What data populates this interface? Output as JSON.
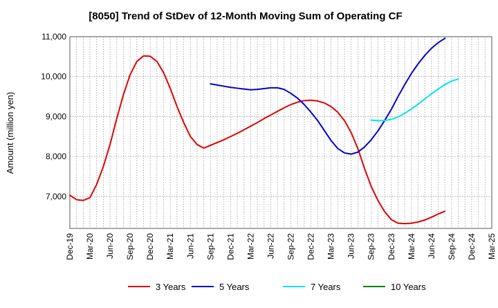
{
  "chart_data": {
    "type": "line",
    "title": "[8050]  Trend of StDev of 12-Month Moving Sum of Operating CF",
    "xlabel": "",
    "ylabel": "Amount (million yen)",
    "ylim": [
      6200,
      11000
    ],
    "yticks": [
      7000,
      8000,
      9000,
      10000,
      11000
    ],
    "ytick_labels": [
      "7,000",
      "8,000",
      "9,000",
      "10,000",
      "11,000"
    ],
    "xtick_labels": [
      "Dec-19",
      "Mar-20",
      "Jun-20",
      "Sep-20",
      "Dec-20",
      "Mar-21",
      "Jun-21",
      "Sep-21",
      "Dec-21",
      "Mar-22",
      "Jun-22",
      "Sep-22",
      "Dec-22",
      "Mar-23",
      "Jun-23",
      "Sep-23",
      "Dec-23",
      "Mar-24",
      "Jun-24",
      "Sep-24",
      "Dec-24",
      "Mar-25"
    ],
    "grid": true,
    "legend_position": "bottom",
    "series": [
      {
        "name": "3 Years",
        "color": "#e00000",
        "start_index": 0,
        "values": [
          7030,
          6920,
          6900,
          6970,
          7300,
          7750,
          8300,
          8950,
          9550,
          10050,
          10380,
          10520,
          10510,
          10380,
          10100,
          9700,
          9250,
          8850,
          8500,
          8300,
          8210,
          8280,
          8350,
          8420,
          8500,
          8580,
          8670,
          8760,
          8850,
          8950,
          9040,
          9130,
          9220,
          9300,
          9360,
          9400,
          9410,
          9390,
          9340,
          9250,
          9110,
          8900,
          8600,
          8200,
          7700,
          7250,
          6900,
          6620,
          6420,
          6330,
          6320,
          6330,
          6360,
          6410,
          6480,
          6560,
          6630
        ]
      },
      {
        "name": "5 Years",
        "color": "#0000cc",
        "start_index": 21,
        "values": [
          9820,
          9790,
          9760,
          9730,
          9710,
          9690,
          9670,
          9680,
          9700,
          9720,
          9720,
          9680,
          9580,
          9460,
          9300,
          9110,
          8900,
          8650,
          8400,
          8200,
          8090,
          8060,
          8110,
          8240,
          8420,
          8640,
          8900,
          9180,
          9500,
          9800,
          10080,
          10320,
          10530,
          10710,
          10850,
          10960
        ]
      },
      {
        "name": "7 Years",
        "color": "#00e5ee",
        "start_index": 45,
        "values": [
          8910,
          8900,
          8900,
          8930,
          8990,
          9080,
          9190,
          9310,
          9440,
          9570,
          9690,
          9800,
          9890,
          9940
        ]
      },
      {
        "name": "10 Years",
        "color": "#008000",
        "start_index": 0,
        "values": []
      }
    ]
  }
}
